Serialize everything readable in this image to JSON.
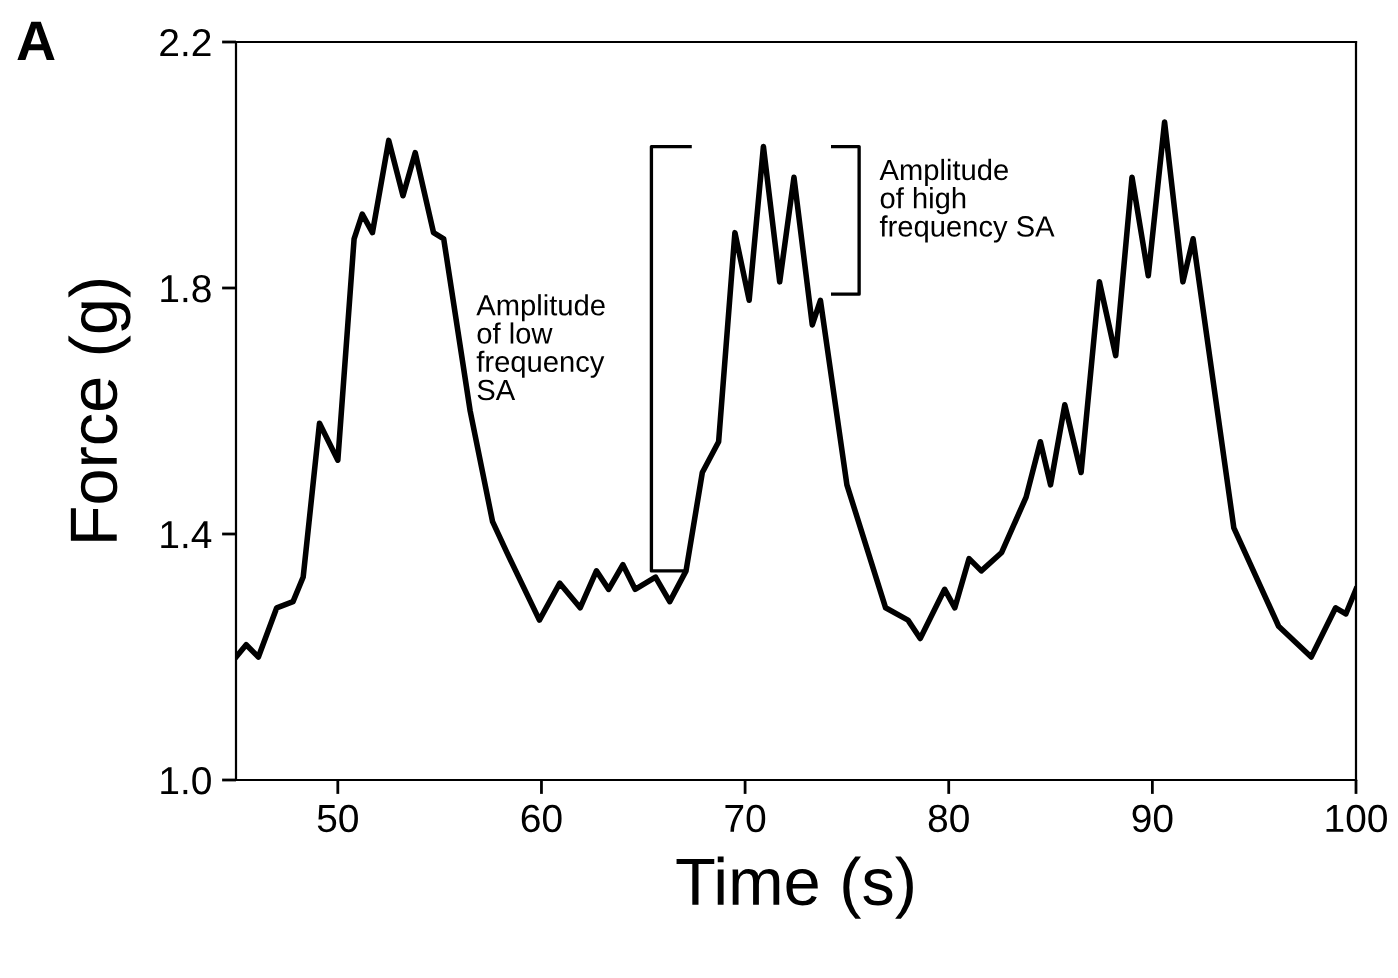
{
  "chart_data": {
    "type": "line",
    "title": "A",
    "xlabel": "Time (s)",
    "ylabel": "Force (g)",
    "xlim": [
      45,
      100
    ],
    "xticks": [
      50,
      60,
      70,
      80,
      90,
      100
    ],
    "ylim": [
      1.0,
      2.2
    ],
    "yticks": [
      {
        "value": 1.0,
        "label": "1.0"
      },
      {
        "value": 1.4,
        "label": "1.4"
      },
      {
        "value": 1.8,
        "label": "1.8"
      },
      {
        "value": 2.2,
        "label": "2.2"
      }
    ],
    "grid": false,
    "legend": false,
    "annotations": [
      "Amplitude\nof low\nfrequency\nSA",
      "Amplitude\nof high\nfrequency SA"
    ],
    "series": [
      {
        "color": "#000000",
        "x": [
          45,
          45.5,
          46.1,
          47.0,
          47.8,
          48.3,
          49.1,
          50.0,
          50.8,
          51.2,
          51.7,
          52.5,
          53.2,
          53.8,
          54.7,
          55.2,
          56.5,
          57.6,
          58.3,
          59.9,
          60.9,
          61.9,
          62.7,
          63.3,
          64.0,
          64.6,
          65.6,
          66.3,
          67.1,
          67.9,
          68.7,
          69.5,
          70.2,
          70.9,
          71.7,
          72.4,
          73.3,
          73.7,
          75.0,
          76.9,
          78.0,
          78.6,
          79.8,
          80.3,
          81.0,
          81.6,
          82.6,
          83.8,
          84.5,
          85.0,
          85.7,
          86.5,
          87.4,
          88.2,
          89.0,
          89.8,
          90.6,
          91.5,
          92.0,
          94.0,
          96.2,
          97.8,
          99.0,
          99.5,
          100
        ],
        "values": [
          1.2,
          1.22,
          1.2,
          1.28,
          1.29,
          1.33,
          1.58,
          1.52,
          1.88,
          1.92,
          1.89,
          2.04,
          1.95,
          2.02,
          1.89,
          1.88,
          1.6,
          1.42,
          1.37,
          1.26,
          1.32,
          1.28,
          1.34,
          1.31,
          1.35,
          1.31,
          1.33,
          1.29,
          1.34,
          1.5,
          1.55,
          1.89,
          1.78,
          2.03,
          1.81,
          1.98,
          1.74,
          1.78,
          1.48,
          1.28,
          1.26,
          1.23,
          1.31,
          1.28,
          1.36,
          1.34,
          1.37,
          1.46,
          1.55,
          1.48,
          1.61,
          1.5,
          1.81,
          1.69,
          1.98,
          1.82,
          2.07,
          1.81,
          1.88,
          1.41,
          1.25,
          1.2,
          1.28,
          1.27,
          1.31
        ]
      }
    ]
  }
}
